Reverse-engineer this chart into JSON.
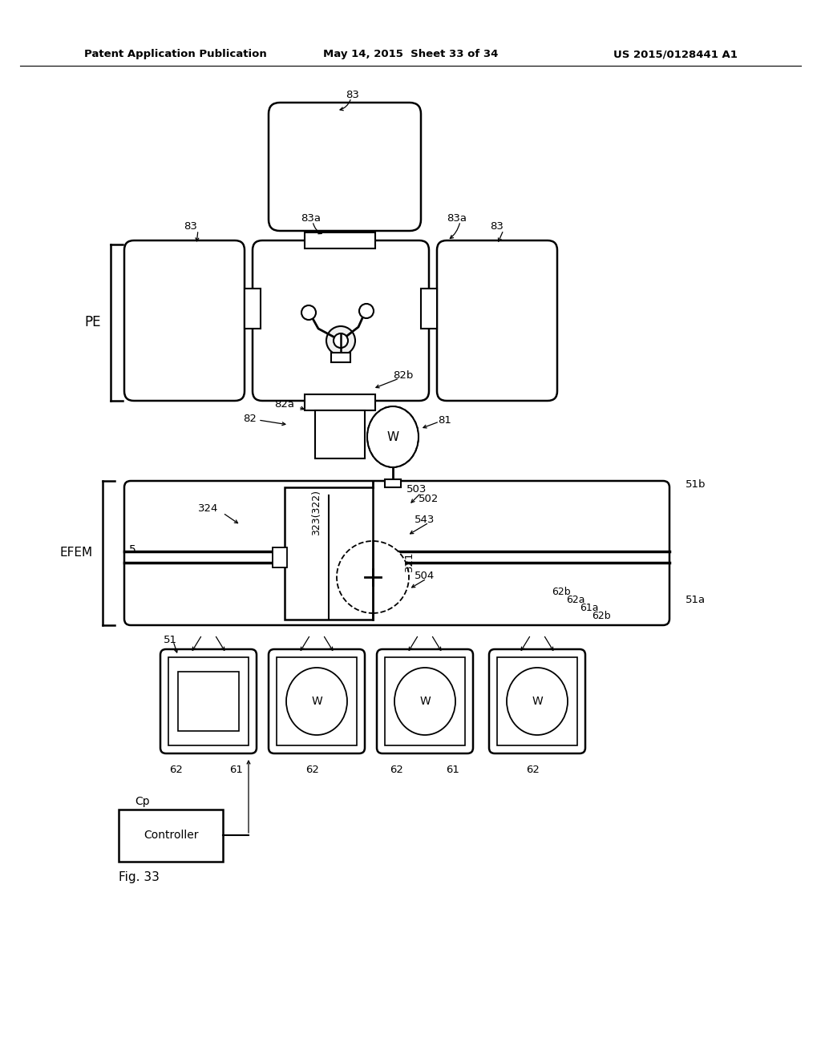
{
  "bg_color": "#ffffff",
  "header_left": "Patent Application Publication",
  "header_center": "May 14, 2015  Sheet 33 of 34",
  "header_right": "US 2015/0128441 A1"
}
